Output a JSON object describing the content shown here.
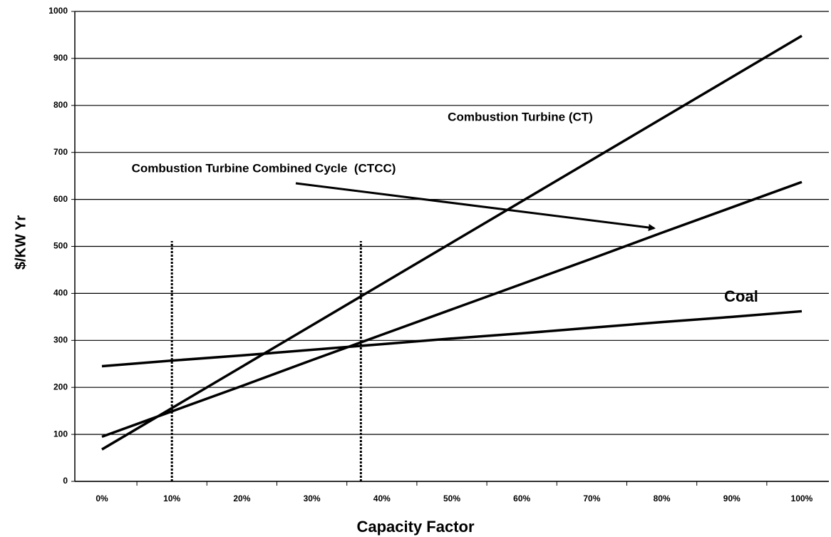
{
  "chart_data": {
    "type": "line",
    "x_label": "Capacity Factor",
    "y_label": "$/KW Yr",
    "categories": [
      "0%",
      "10%",
      "20%",
      "30%",
      "40%",
      "50%",
      "60%",
      "70%",
      "80%",
      "90%",
      "100%"
    ],
    "series": [
      {
        "name": "Combustion Turbine (CT)",
        "color": "#000000",
        "values": [
          68,
          156,
          244,
          332,
          420,
          508,
          596,
          684,
          772,
          860,
          948
        ]
      },
      {
        "name": "Combustion Turbine Combined Cycle  (CTCC)",
        "color": "#000000",
        "values": [
          95,
          149,
          203,
          258,
          312,
          366,
          420,
          474,
          529,
          583,
          637
        ]
      },
      {
        "name": "Coal",
        "color": "#000000",
        "values": [
          245,
          257,
          268,
          280,
          292,
          304,
          315,
          327,
          339,
          350,
          362
        ]
      }
    ],
    "reference_lines": [
      10,
      37
    ],
    "ylim": [
      0,
      1000
    ],
    "yticks": [
      0,
      100,
      200,
      300,
      400,
      500,
      600,
      700,
      800,
      900,
      1000
    ],
    "grid": true
  }
}
